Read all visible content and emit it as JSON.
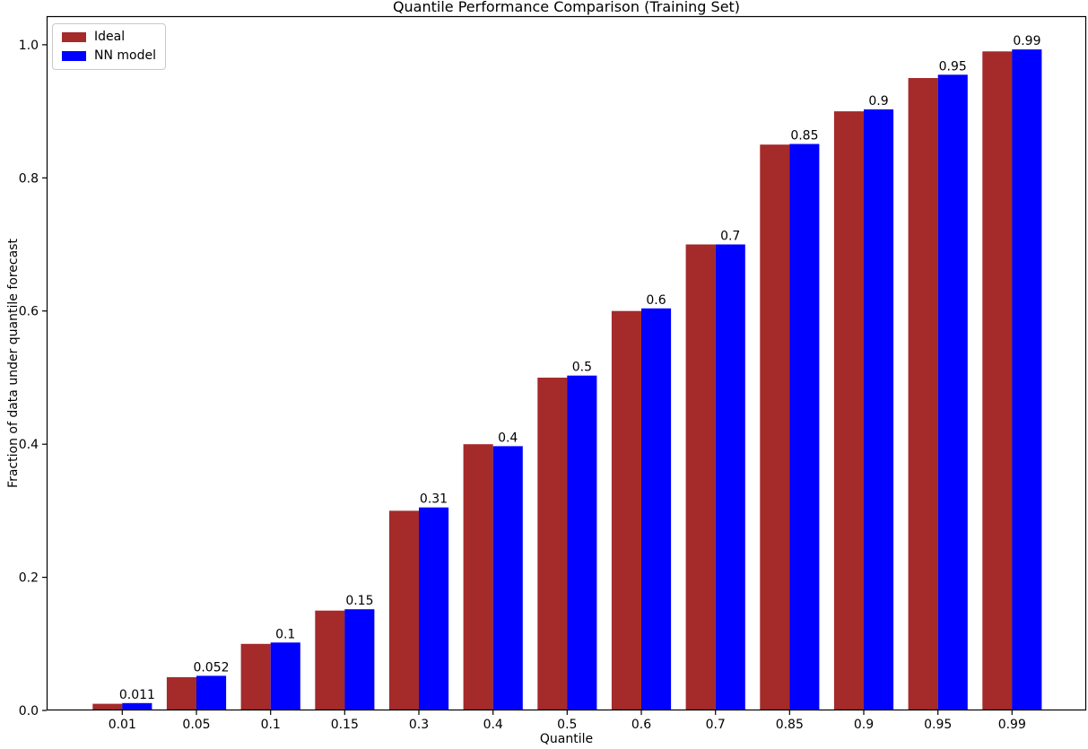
{
  "chart_data": {
    "type": "bar",
    "title": "Quantile Performance Comparison (Training Set)",
    "xlabel": "Quantile",
    "ylabel": "Fraction of data under quantile forecast",
    "categories": [
      "0.01",
      "0.05",
      "0.1",
      "0.15",
      "0.3",
      "0.4",
      "0.5",
      "0.6",
      "0.7",
      "0.85",
      "0.9",
      "0.95",
      "0.99"
    ],
    "series": [
      {
        "name": "Ideal",
        "color": "#A52A2A",
        "values": [
          0.01,
          0.05,
          0.1,
          0.15,
          0.3,
          0.4,
          0.5,
          0.6,
          0.7,
          0.85,
          0.9,
          0.95,
          0.99
        ]
      },
      {
        "name": "NN model",
        "color": "#0000FF",
        "values": [
          0.011,
          0.052,
          0.102,
          0.152,
          0.305,
          0.397,
          0.503,
          0.604,
          0.7,
          0.851,
          0.903,
          0.955,
          0.993
        ]
      }
    ],
    "bar_labels": [
      "0.011",
      "0.052",
      "0.1",
      "0.15",
      "0.31",
      "0.4",
      "0.5",
      "0.6",
      "0.7",
      "0.85",
      "0.9",
      "0.95",
      "0.99"
    ],
    "yticks": [
      "0.0",
      "0.2",
      "0.4",
      "0.6",
      "0.8",
      "1.0"
    ],
    "ylim": [
      0,
      1.043
    ],
    "xlim_units": [
      -1.02,
      13.0
    ],
    "grid": false,
    "legend_position": "upper left",
    "background": "#ffffff",
    "spine_color": "#000000"
  }
}
